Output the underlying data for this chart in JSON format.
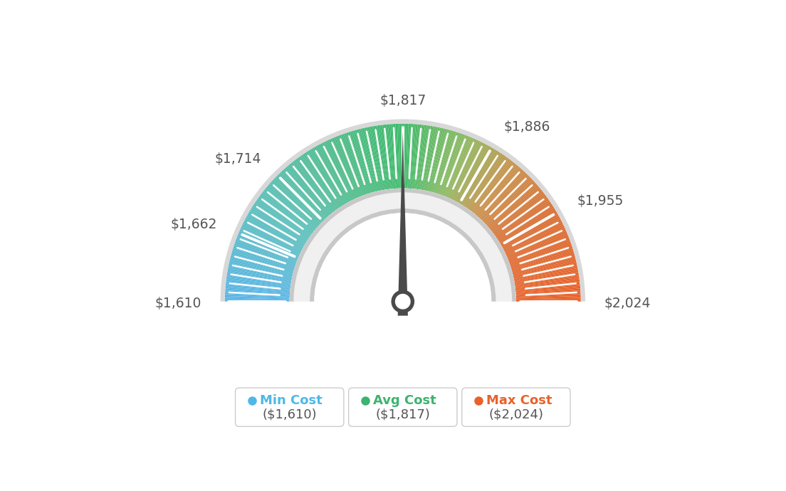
{
  "min_val": 1610,
  "max_val": 2024,
  "avg_val": 1817,
  "tick_labels": [
    "$1,610",
    "$1,662",
    "$1,714",
    "$1,817",
    "$1,886",
    "$1,955",
    "$2,024"
  ],
  "tick_values": [
    1610,
    1662,
    1714,
    1817,
    1886,
    1955,
    2024
  ],
  "legend": [
    {
      "label": "Min Cost",
      "value": "($1,610)",
      "color": "#4db8e8"
    },
    {
      "label": "Avg Cost",
      "value": "($1,817)",
      "color": "#3cb371"
    },
    {
      "label": "Max Cost",
      "value": "($2,024)",
      "color": "#e8622a"
    }
  ],
  "background_color": "#ffffff",
  "needle_value": 1817,
  "color_stops": [
    [
      0.0,
      "#5ab5e8"
    ],
    [
      0.2,
      "#5bbfb8"
    ],
    [
      0.38,
      "#4dbb85"
    ],
    [
      0.5,
      "#3dba6a"
    ],
    [
      0.62,
      "#8db860"
    ],
    [
      0.72,
      "#c8904a"
    ],
    [
      0.82,
      "#d97035"
    ],
    [
      1.0,
      "#e8622a"
    ]
  ],
  "num_minor_ticks": 13
}
